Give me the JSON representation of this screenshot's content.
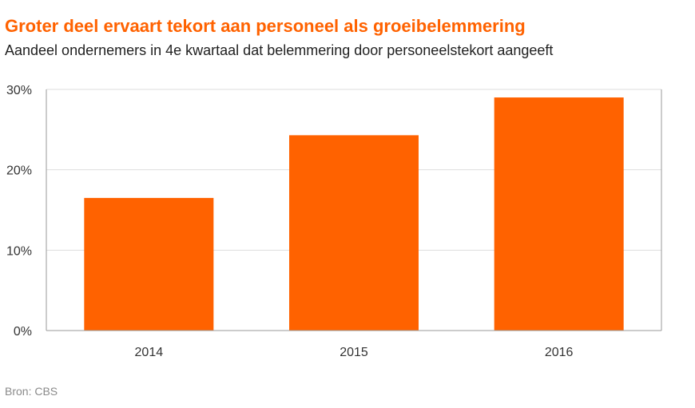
{
  "header": {
    "title": "Groter deel ervaart tekort aan personeel als groeibelemmering",
    "subtitle": "Aandeel ondernemers in 4e kwartaal dat belemmering door personeelstekort aangeeft"
  },
  "footer": {
    "source": "Bron: CBS"
  },
  "colors": {
    "bar": "#ff6200",
    "title": "#ff6200",
    "grid": "#dddddd",
    "axis": "#999999"
  },
  "chart_data": {
    "type": "bar",
    "categories": [
      "2014",
      "2015",
      "2016"
    ],
    "values": [
      16.5,
      24.3,
      29
    ],
    "ylim": [
      0,
      30
    ],
    "yticks": [
      0,
      10,
      20,
      30
    ],
    "ytick_labels": [
      "0%",
      "10%",
      "20%",
      "30%"
    ],
    "grid": true,
    "legend": "none"
  }
}
